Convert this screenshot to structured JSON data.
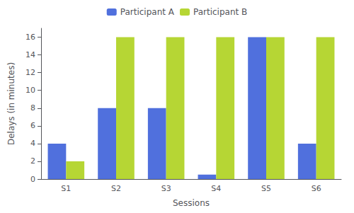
{
  "chart_data": {
    "type": "bar",
    "xlabel": "Sessions",
    "ylabel": "Delays (in minutes)",
    "categories": [
      "S1",
      "S2",
      "S3",
      "S4",
      "S5",
      "S6"
    ],
    "series": [
      {
        "name": "Participant A",
        "values": [
          4,
          8,
          8,
          0.5,
          16,
          4
        ]
      },
      {
        "name": "Participant B",
        "values": [
          2,
          16,
          16,
          16,
          16,
          16
        ]
      }
    ],
    "ylim": [
      0,
      17
    ],
    "yticks": [
      0,
      2,
      4,
      6,
      8,
      10,
      12,
      14,
      16
    ],
    "grid": false,
    "legend": "top"
  }
}
